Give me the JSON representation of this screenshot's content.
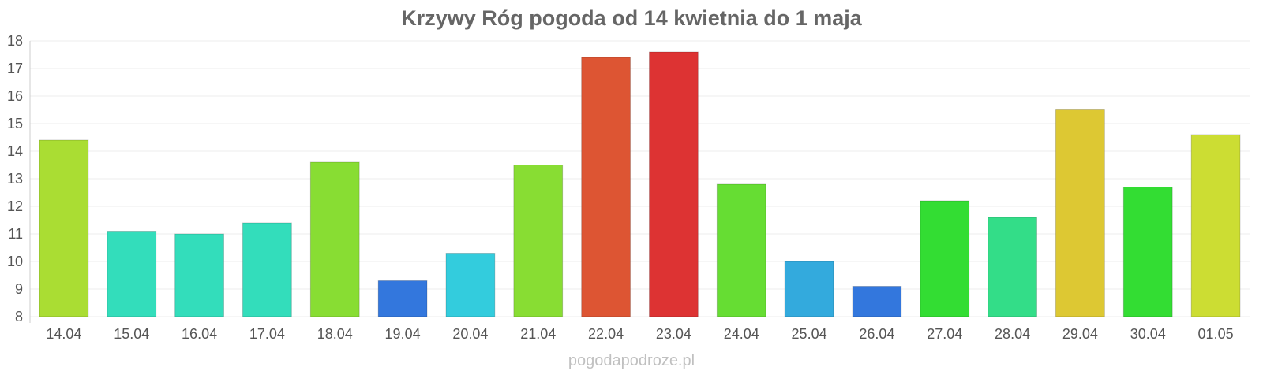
{
  "chart_data": {
    "type": "bar",
    "title": "Krzywy Róg pogoda od 14 kwietnia do 1 maja",
    "xlabel": "",
    "ylabel": "",
    "ylim": [
      8,
      18
    ],
    "yticks": [
      8,
      9,
      10,
      11,
      12,
      13,
      14,
      15,
      16,
      17,
      18
    ],
    "grid": true,
    "categories": [
      "14.04",
      "15.04",
      "16.04",
      "17.04",
      "18.04",
      "19.04",
      "20.04",
      "21.04",
      "22.04",
      "23.04",
      "24.04",
      "25.04",
      "26.04",
      "27.04",
      "28.04",
      "29.04",
      "30.04",
      "01.05"
    ],
    "values": [
      14.4,
      11.1,
      11.0,
      11.4,
      13.6,
      9.3,
      10.3,
      13.5,
      17.4,
      17.6,
      12.8,
      10.0,
      9.1,
      12.2,
      11.6,
      15.5,
      12.7,
      14.6
    ],
    "colors": [
      "#aadd33",
      "#33ddbb",
      "#33ddbb",
      "#33ddbb",
      "#88dd33",
      "#3377dd",
      "#33ccdd",
      "#88dd33",
      "#dd5533",
      "#dd3333",
      "#66dd33",
      "#33aadd",
      "#3377dd",
      "#33dd33",
      "#33dd88",
      "#ddc833",
      "#33dd33",
      "#ccdd33"
    ]
  },
  "source": "pogodapodroze.pl"
}
